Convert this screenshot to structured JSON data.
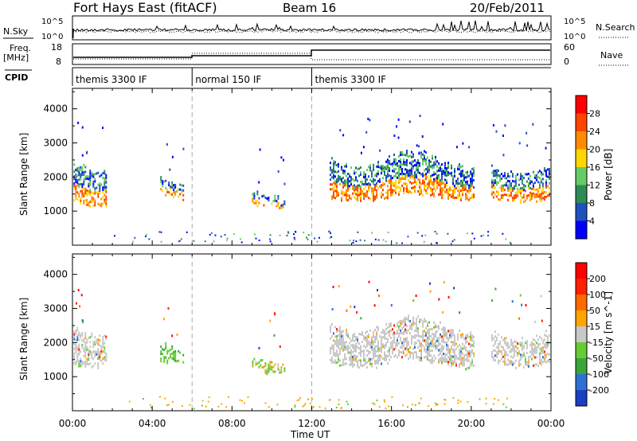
{
  "header": {
    "title": "Fort Hays East (fitACF)",
    "beam": "Beam 16",
    "date": "20/Feb/2011"
  },
  "strips": {
    "nsky_label": "N.Sky",
    "nsearch_label": "N.Search",
    "nsky_ticks": [
      "10^5",
      "10^0"
    ],
    "nsearch_ticks": [
      "10^5",
      "10^0"
    ],
    "freq_label": "Freq.",
    "freq_unit": "[MHz]",
    "freq_ticks": [
      "18",
      "8"
    ],
    "nave_label": "Nave",
    "nave_ticks": [
      "60",
      "0"
    ],
    "cpid_label": "CPID",
    "cpid_segments": [
      {
        "name": "themis 3300 IF",
        "start_hr": 0,
        "end_hr": 6
      },
      {
        "name": "normal 150 IF",
        "start_hr": 6,
        "end_hr": 12
      },
      {
        "name": "themis 3300 IF",
        "start_hr": 12,
        "end_hr": 24
      }
    ]
  },
  "chart_data": [
    {
      "type": "heatmap",
      "panel": "power",
      "ylabel": "Slant Range [km]",
      "ylim": [
        0,
        4600
      ],
      "yticks": [
        1000,
        2000,
        3000,
        4000
      ],
      "xlim": [
        0,
        24
      ],
      "xticks": [
        "00:00",
        "04:00",
        "08:00",
        "12:00",
        "16:00",
        "20:00",
        "00:00"
      ],
      "xlabel": "Time UT",
      "colorbar_label": "Power [dB]",
      "colorbar_ticks": [
        "28",
        "24",
        "20",
        "16",
        "12",
        "8",
        "4"
      ],
      "colors": [
        "#0000ff",
        "#2050c0",
        "#2e8b57",
        "#66cc66",
        "#ffd700",
        "#ff8c00",
        "#ff4500",
        "#ff0000"
      ],
      "scatter_regions": [
        {
          "t0": 0.05,
          "t1": 1.75,
          "r0": 1200,
          "r1": 2600,
          "density": "high",
          "core": 1500
        },
        {
          "t0": 4.4,
          "t1": 5.6,
          "r0": 1400,
          "r1": 2200,
          "density": "medium",
          "core": 1600
        },
        {
          "t0": 9.0,
          "t1": 10.7,
          "r0": 1100,
          "r1": 1800,
          "density": "medium",
          "core": 1400
        },
        {
          "t0": 12.9,
          "t1": 20.2,
          "r0": 1300,
          "r1": 2700,
          "density": "high",
          "core": 1500
        },
        {
          "t0": 21.0,
          "t1": 24.0,
          "r0": 1300,
          "r1": 2500,
          "density": "high",
          "core": 1500
        }
      ]
    },
    {
      "type": "heatmap",
      "panel": "velocity",
      "ylabel": "Slant Range [km]",
      "ylim": [
        0,
        4600
      ],
      "yticks": [
        1000,
        2000,
        3000,
        4000
      ],
      "xlim": [
        0,
        24
      ],
      "xticks": [
        "00:00",
        "04:00",
        "08:00",
        "12:00",
        "16:00",
        "20:00",
        "00:00"
      ],
      "xlabel": "Time UT",
      "colorbar_label": "Velocity [m s^-1]",
      "colorbar_ticks": [
        "200",
        "100",
        "50",
        "15",
        "-15",
        "-50",
        "-100",
        "-200"
      ],
      "colors": [
        "#1a3fbf",
        "#2f6fd6",
        "#3aa63a",
        "#66cc33",
        "#c8c8c8",
        "#ffa500",
        "#ff6a00",
        "#ff2000",
        "#ff0000"
      ],
      "scatter_regions": [
        {
          "t0": 0.05,
          "t1": 1.75,
          "r0": 1300,
          "r1": 2600,
          "dominant": "gray"
        },
        {
          "t0": 4.4,
          "t1": 5.6,
          "r0": 1400,
          "r1": 2200,
          "dominant": "green"
        },
        {
          "t0": 9.0,
          "t1": 10.7,
          "r0": 1100,
          "r1": 1800,
          "dominant": "green-orange"
        },
        {
          "t0": 12.9,
          "t1": 20.2,
          "r0": 1300,
          "r1": 2700,
          "dominant": "gray"
        },
        {
          "t0": 21.0,
          "t1": 24.0,
          "r0": 1300,
          "r1": 2500,
          "dominant": "gray"
        }
      ]
    }
  ]
}
